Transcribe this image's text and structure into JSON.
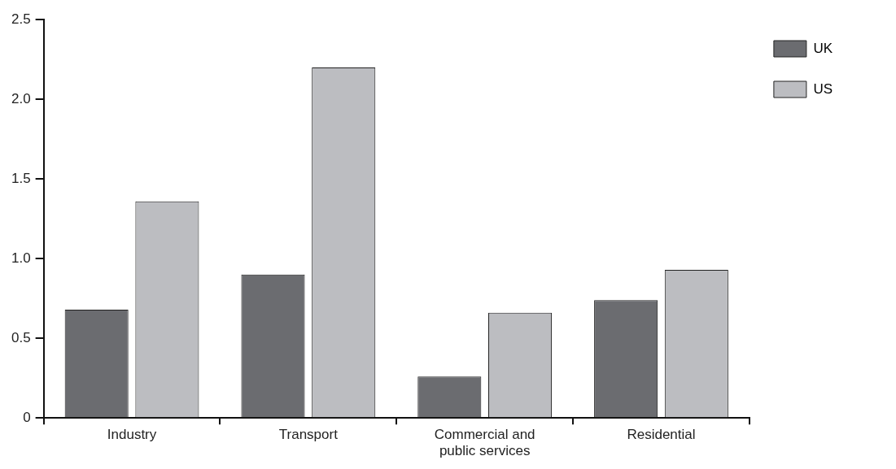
{
  "chart_data": {
    "type": "bar",
    "categories": [
      "Industry",
      "Transport",
      [
        "Commercial and",
        "public services"
      ],
      "Residential"
    ],
    "series": [
      {
        "name": "UK",
        "color": "#6b6c70",
        "values": [
          0.68,
          0.9,
          0.26,
          0.74
        ]
      },
      {
        "name": "US",
        "color": "#bcbdc1",
        "values": [
          1.36,
          2.2,
          0.66,
          0.93
        ]
      }
    ],
    "ylim": [
      0,
      2.5
    ],
    "yticks": [
      {
        "value": 0,
        "label": "0"
      },
      {
        "value": 0.5,
        "label": "0.5"
      },
      {
        "value": 1,
        "label": "1.0"
      },
      {
        "value": 1.5,
        "label": "1.5"
      },
      {
        "value": 2,
        "label": "2.0"
      },
      {
        "value": 2.5,
        "label": "2.5"
      }
    ],
    "grid": false,
    "legend": "top right"
  }
}
